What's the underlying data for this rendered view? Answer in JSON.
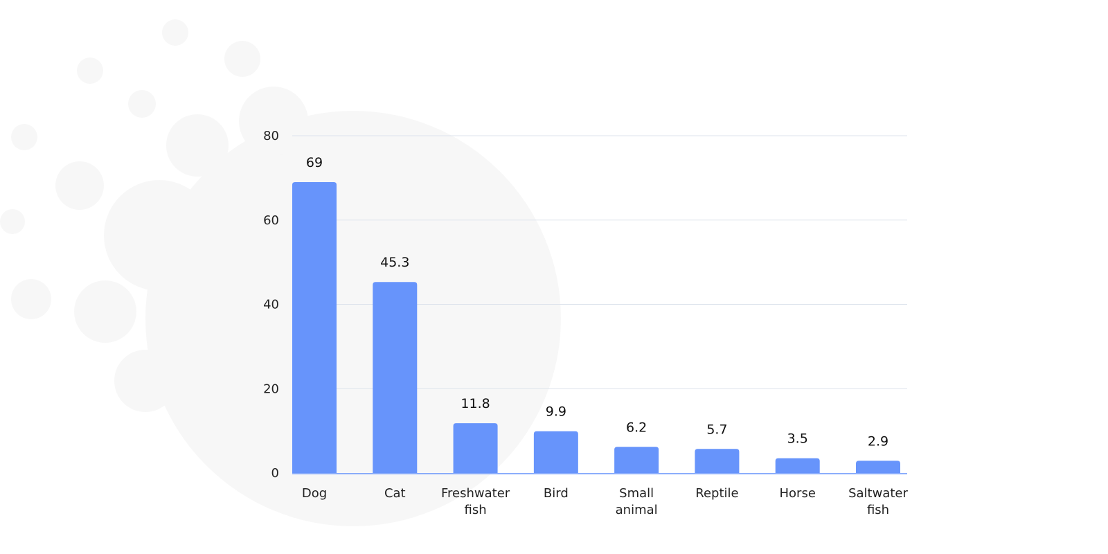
{
  "chart_data": {
    "type": "bar",
    "title": "",
    "xlabel": "",
    "ylabel": "",
    "categories": [
      "Dog",
      "Cat",
      "Freshwater fish",
      "Bird",
      "Small animal",
      "Reptile",
      "Horse",
      "Saltwater fish"
    ],
    "values": [
      69,
      45.3,
      11.8,
      9.9,
      6.2,
      5.7,
      3.5,
      2.9
    ],
    "data_labels": [
      "69",
      "45.3",
      "11.8",
      "9.9",
      "6.2",
      "5.7",
      "3.5",
      "2.9"
    ],
    "ylim": [
      0,
      80
    ],
    "yticks": [
      0,
      20,
      40,
      60,
      80
    ],
    "ytick_labels": [
      "0",
      "20",
      "40",
      "60",
      "80"
    ],
    "grid": true,
    "legend": "none",
    "colors": {
      "bar": "#6794fb",
      "grid": "#dde3ec",
      "axis": "#6794fb",
      "watermark": "#f7f7f7"
    }
  }
}
